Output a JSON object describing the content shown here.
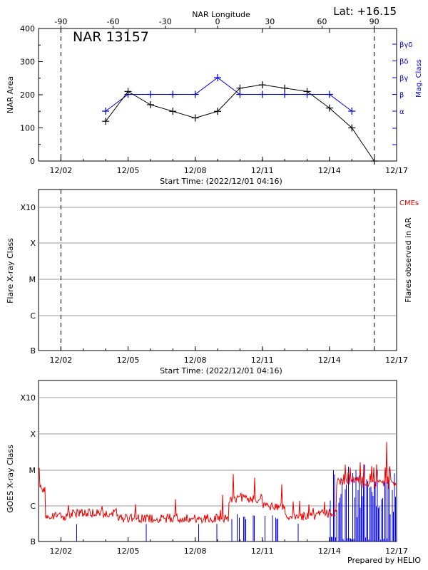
{
  "chart_data": [
    {
      "type": "line",
      "title": "NAR 13157",
      "annotation": "Lat: +16.15",
      "top_axis_label": "NAR Longitude",
      "top_ticks": [
        "-90",
        "-60",
        "-30",
        "0",
        "30",
        "60",
        "90"
      ],
      "xlabel": "Start Time: (2022/12/01 04:16)",
      "x_tick_labels": [
        "12/02",
        "12/05",
        "12/08",
        "12/11",
        "12/14",
        "12/17"
      ],
      "ylabel": "NAR Area",
      "ylim": [
        0,
        400
      ],
      "y_ticks": [
        "0",
        "100",
        "200",
        "300",
        "400"
      ],
      "y2label": "Mag. Class",
      "y2_ticks": [
        "α",
        "β",
        "βγ",
        "βδ",
        "βγδ"
      ],
      "x_range_days": [
        0,
        16
      ],
      "dashed_lines_days": [
        1,
        15
      ],
      "series": [
        {
          "name": "NAR Area",
          "color": "#000000",
          "x": [
            3,
            4,
            5,
            6,
            7,
            8,
            9,
            10,
            11,
            12,
            13,
            14,
            15
          ],
          "values": [
            120,
            210,
            170,
            150,
            130,
            150,
            220,
            230,
            220,
            210,
            160,
            100,
            0
          ]
        },
        {
          "name": "Mag. Class",
          "color": "#0000cc",
          "x": [
            3,
            4,
            5,
            6,
            7,
            8,
            9,
            10,
            11,
            12,
            13,
            14
          ],
          "values": [
            "α",
            "β",
            "β",
            "β",
            "β",
            "βγ",
            "β",
            "β",
            "β",
            "β",
            "β",
            "α"
          ]
        }
      ]
    },
    {
      "type": "scatter",
      "xlabel": "Start Time: (2022/12/01 04:16)",
      "x_tick_labels": [
        "12/02",
        "12/05",
        "12/08",
        "12/11",
        "12/14",
        "12/17"
      ],
      "ylabel": "Flare X-ray Class",
      "y_ticks": [
        "B",
        "C",
        "M",
        "X",
        "X10"
      ],
      "y2label": "Flares observed in AR",
      "legend": "CMEs",
      "dashed_lines_days": [
        1,
        15
      ],
      "series": []
    },
    {
      "type": "line",
      "ylabel": "GOES X-ray Class",
      "y_ticks": [
        "B",
        "C",
        "M",
        "X",
        "X10"
      ],
      "x_tick_labels": [
        "12/02",
        "12/05",
        "12/08",
        "12/11",
        "12/14",
        "12/17"
      ],
      "footer": "Prepared by HELIO",
      "series": [
        {
          "name": "GOES long channel",
          "color": "#ee0000"
        },
        {
          "name": "GOES short channel",
          "color": "#0000ee"
        }
      ]
    }
  ]
}
